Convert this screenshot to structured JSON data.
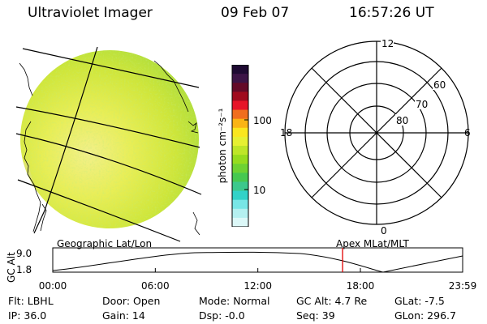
{
  "header": {
    "title": "Ultraviolet Imager",
    "date": "09 Feb 07",
    "time": "16:57:26 UT"
  },
  "colorbar": {
    "unit_label": "photon cm⁻²s⁻¹",
    "ticks": [
      "100",
      "10"
    ],
    "colors": [
      "#1e0a32",
      "#3c1446",
      "#640a28",
      "#a00a1e",
      "#e61428",
      "#f06e1e",
      "#fab414",
      "#fae61e",
      "#e6f032",
      "#bee628",
      "#96dc1e",
      "#6ed232",
      "#46c850",
      "#3cc88c",
      "#32d2c8",
      "#78e6e6",
      "#b4f0f0",
      "#dcf8f8"
    ]
  },
  "polar": {
    "clock_labels": [
      "12",
      "18",
      "6",
      "0"
    ],
    "lat_labels": [
      "60",
      "70",
      "80"
    ]
  },
  "timeline": {
    "ylabel": "GC Alt",
    "yticks": [
      "9.0",
      "1.8"
    ],
    "left_label": "Geographic Lat/Lon",
    "right_label": "Apex MLat/MLT",
    "xticks": [
      "00:00",
      "06:00",
      "12:00",
      "18:00",
      "23:59"
    ],
    "marker_time_hours": 16.957,
    "marker_color": "#e00000"
  },
  "footer": {
    "filter": "Flt: LBHL",
    "ip": "IP: 36.0",
    "door": "Door: Open",
    "gain": "Gain: 14",
    "mode": "Mode: Normal",
    "dsp": "Dsp:   -0.0",
    "gcalt": "GC Alt: 4.7 Re",
    "seq": "Seq: 39",
    "glat": "GLat:   -7.5",
    "glon": "GLon: 296.7"
  }
}
